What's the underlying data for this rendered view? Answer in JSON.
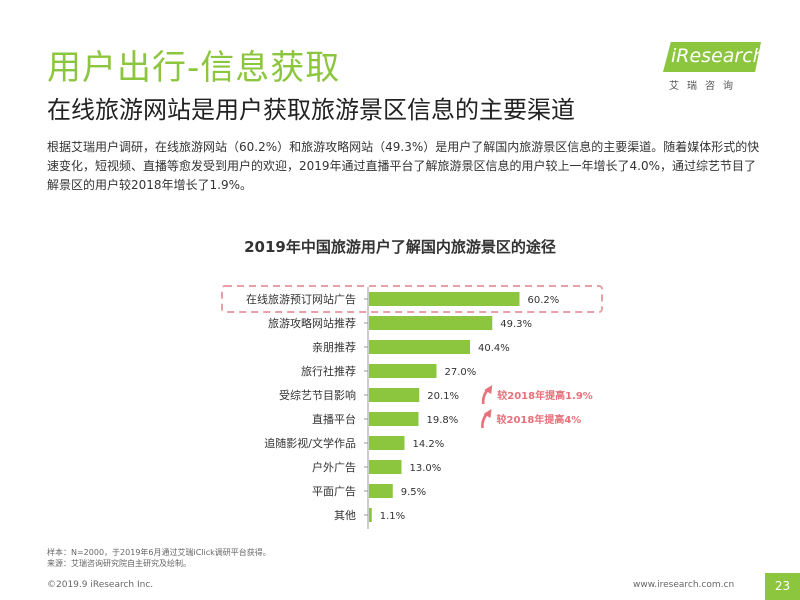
{
  "header": {
    "title": "用户出行-信息获取",
    "subtitle": "在线旅游网站是用户获取旅游景区信息的主要渠道",
    "description": "根据艾瑞用户调研，在线旅游网站（60.2%）和旅游攻略网站（49.3%）是用户了解国内旅游景区信息的主要渠道。随着媒体形式的快速变化，短视频、直播等愈发受到用户的欢迎，2019年通过直播平台了解旅游景区信息的用户较上一年增长了4.0%，通过综艺节目了解景区的用户较2018年增长了1.9%。"
  },
  "logo": {
    "text": "iResearch",
    "cn": "艾瑞咨询"
  },
  "chart_data": {
    "type": "bar",
    "orientation": "horizontal",
    "title": "2019年中国旅游用户了解国内旅游景区的途径",
    "categories": [
      "在线旅游预订网站广告",
      "旅游攻略网站推荐",
      "亲朋推荐",
      "旅行社推荐",
      "受综艺节目影响",
      "直播平台",
      "追随影视/文学作品",
      "户外广告",
      "平面广告",
      "其他"
    ],
    "values": [
      60.2,
      49.3,
      40.4,
      27.0,
      20.1,
      19.8,
      14.2,
      13.0,
      9.5,
      1.1
    ],
    "value_labels": [
      "60.2%",
      "49.3%",
      "40.4%",
      "27.0%",
      "20.1%",
      "19.8%",
      "14.2%",
      "13.0%",
      "9.5%",
      "1.1%"
    ],
    "unit": "%",
    "annotations": [
      {
        "category": "受综艺节目影响",
        "text": "较2018年提高1.9%"
      },
      {
        "category": "直播平台",
        "text": "较2018年提高4%"
      }
    ],
    "highlight": "在线旅游预订网站广告"
  },
  "colors": {
    "accent": "#8cc63f",
    "annotation": "#e8707a",
    "highlight_box": "#e8a0a8"
  },
  "footnote": {
    "line1": "样本：N=2000，于2019年6月通过艾瑞iClick调研平台获得。",
    "line2": "来源：艾瑞咨询研究院自主研究及绘制。"
  },
  "footer": {
    "copyright": "©2019.9 iResearch Inc.",
    "website": "www.iresearch.com.cn",
    "page": "23"
  }
}
